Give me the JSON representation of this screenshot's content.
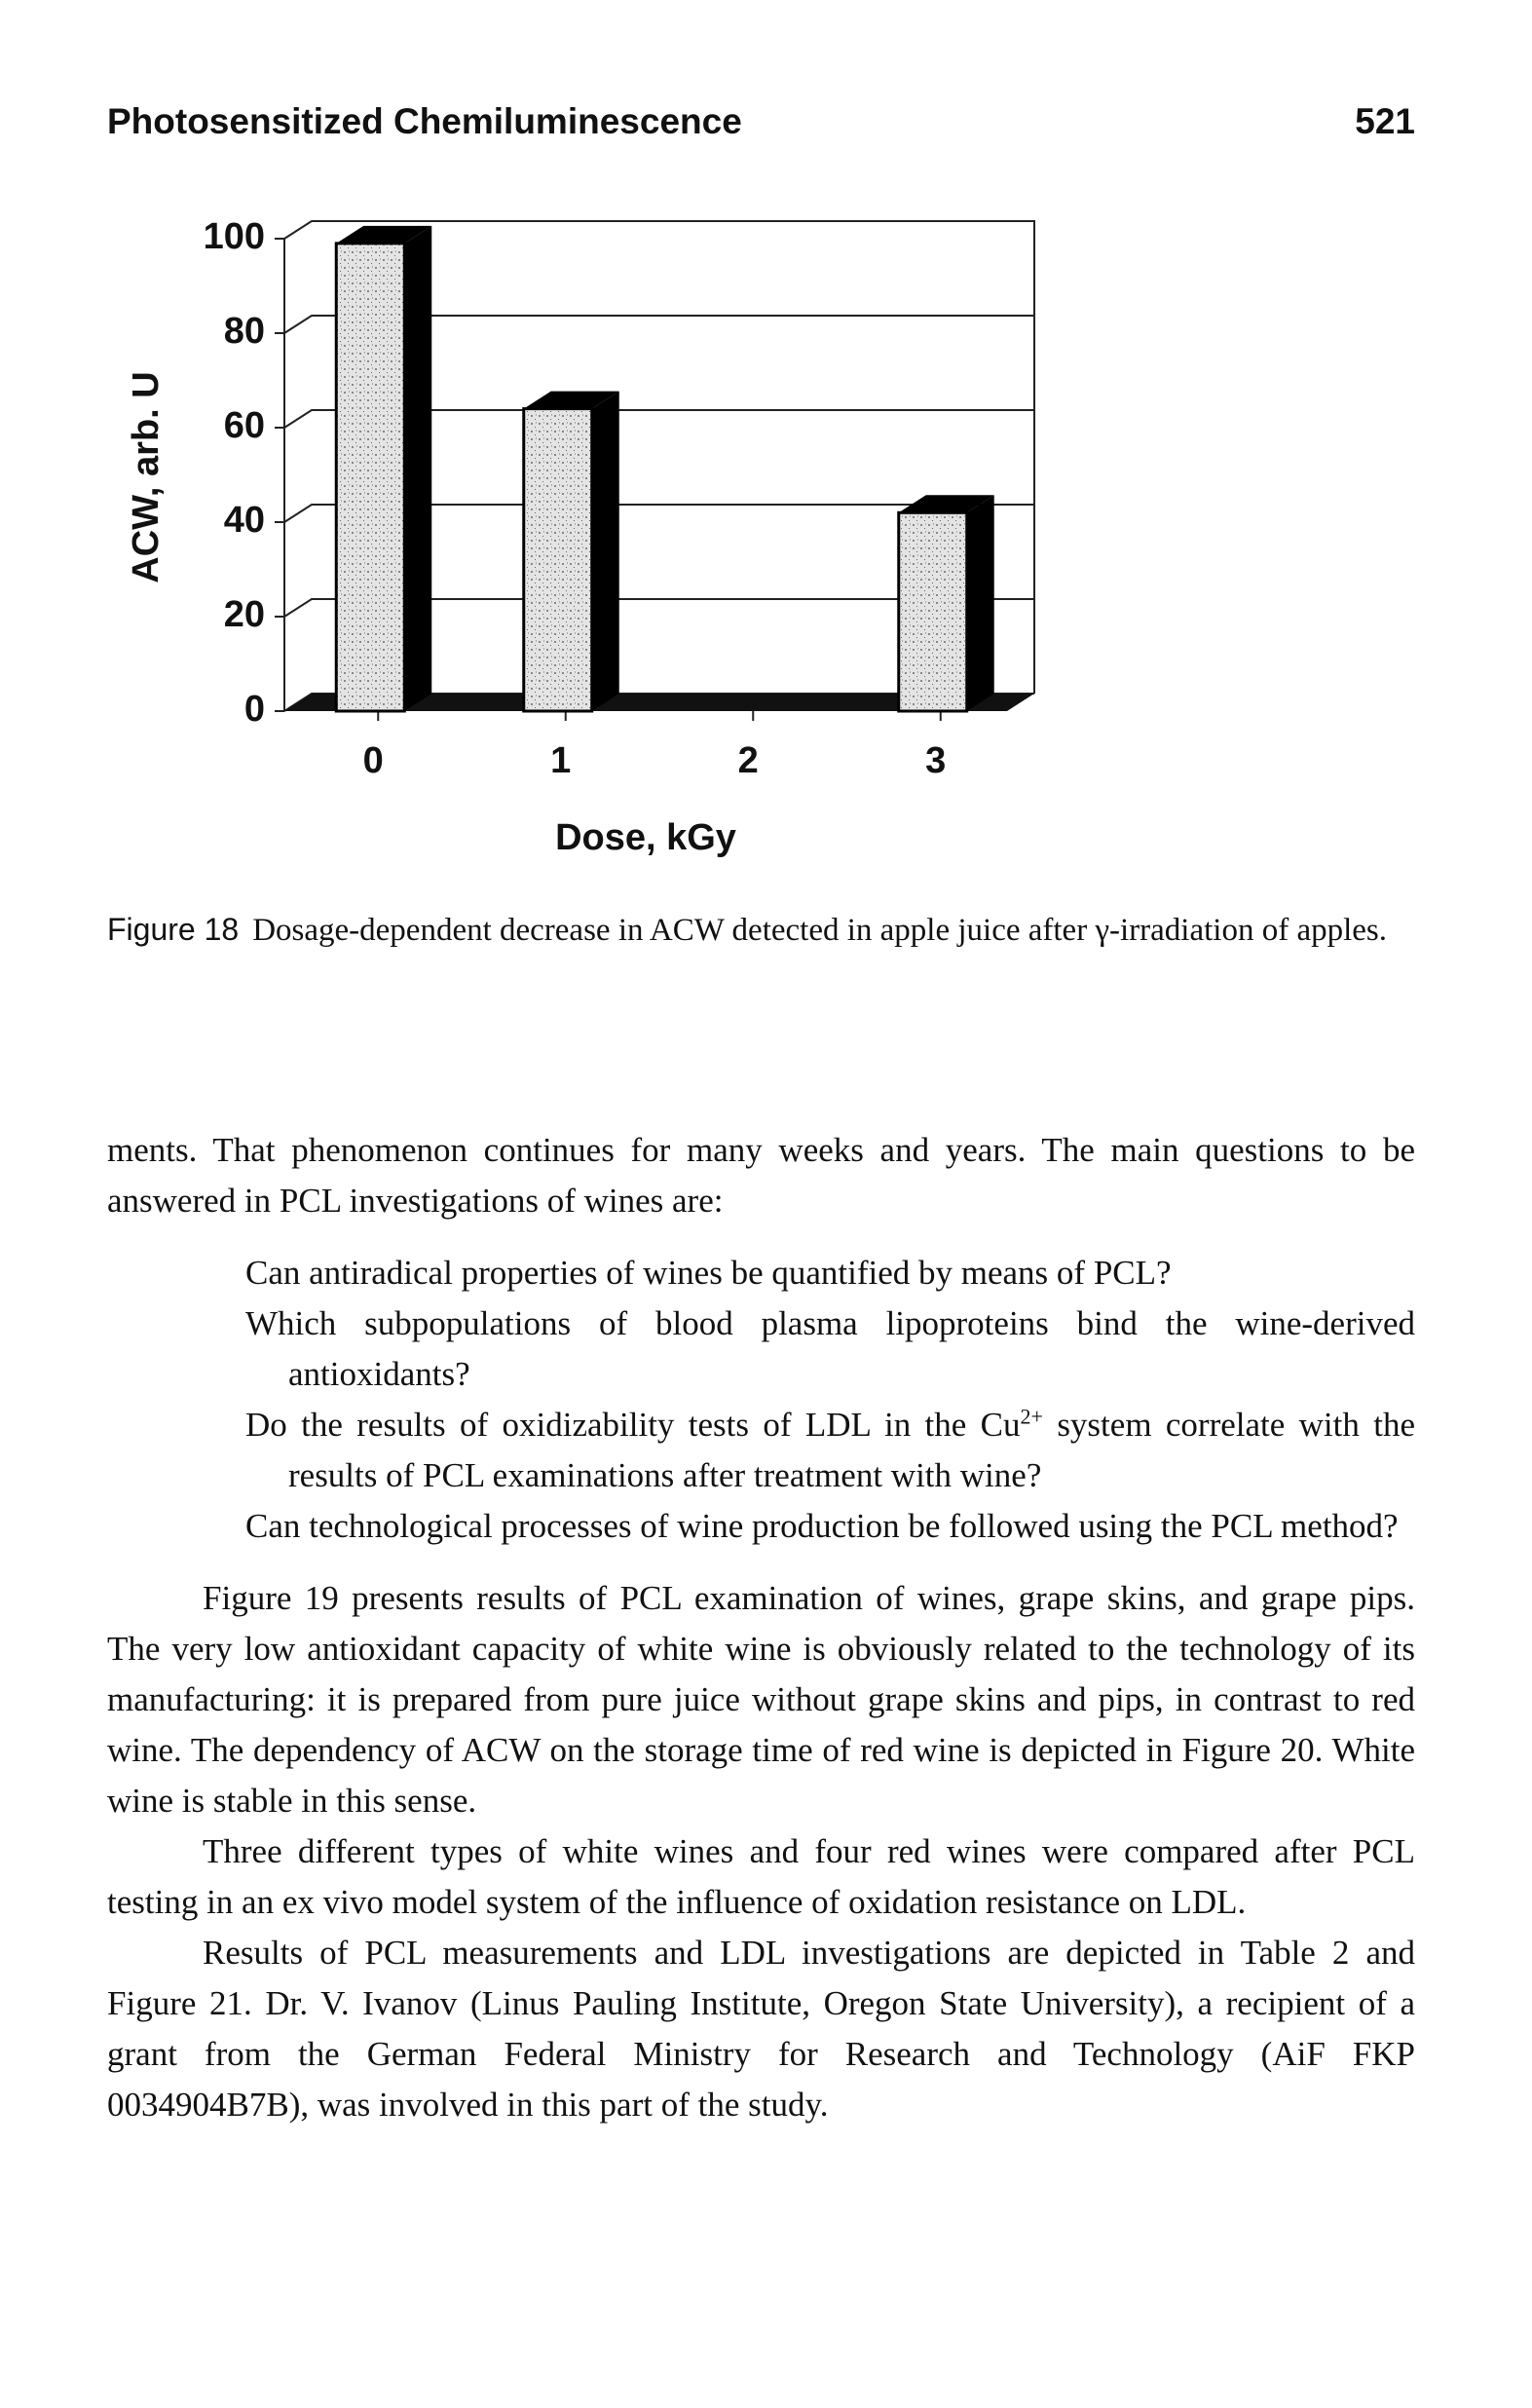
{
  "header": {
    "title": "Photosensitized Chemiluminescence",
    "page": "521"
  },
  "chart_data": {
    "type": "bar",
    "y_label": "ACW, arb. U",
    "x_label": "Dose, kGy",
    "x": [
      0,
      1,
      3
    ],
    "values": [
      99,
      64,
      42
    ],
    "xlim": [
      -0.5,
      3.5
    ],
    "xticks": [
      0,
      1,
      2,
      3
    ],
    "ylim": [
      0,
      100
    ],
    "yticks": [
      0,
      20,
      40,
      60,
      80,
      100
    ],
    "grid": true,
    "color": "#d8d8d8"
  },
  "caption": {
    "label": "Figure 18",
    "text": "Dosage-dependent decrease in ACW detected in apple juice after γ-irradiation of apples."
  },
  "body": {
    "p1": "ments. That phenomenon continues for many weeks and years. The main questions to be answered in PCL investigations of wines are:",
    "q1": "Can antiradical properties of wines be quantified by means of PCL?",
    "q2": "Which subpopulations of blood plasma lipoproteins bind the wine-derived antioxidants?",
    "q3a": "Do the results of oxidizability tests of LDL in the Cu",
    "q3sup": "2+",
    "q3b": " system correlate with the results of PCL examinations after treatment with wine?",
    "q4": "Can technological processes of wine production be followed using the PCL method?",
    "p2": "Figure 19 presents results of PCL examination of wines, grape skins, and grape pips. The very low antioxidant capacity of white wine is obviously related to the technology of its manufacturing: it is prepared from pure juice without grape skins and pips, in contrast to red wine. The dependency of ACW on the storage time of red wine is depicted in Figure 20. White wine is stable in this sense.",
    "p3": "Three different types of white wines and four red wines were compared after PCL testing in an ex vivo model system of the influence of oxidation resistance on LDL.",
    "p4": "Results of PCL measurements and LDL investigations are depicted in Table 2 and Figure 21. Dr. V. Ivanov (Linus Pauling Institute, Oregon State University), a recipient of a grant from the German Federal Ministry for Research and Technology (AiF FKP 0034904B7B), was involved in this part of the study."
  }
}
